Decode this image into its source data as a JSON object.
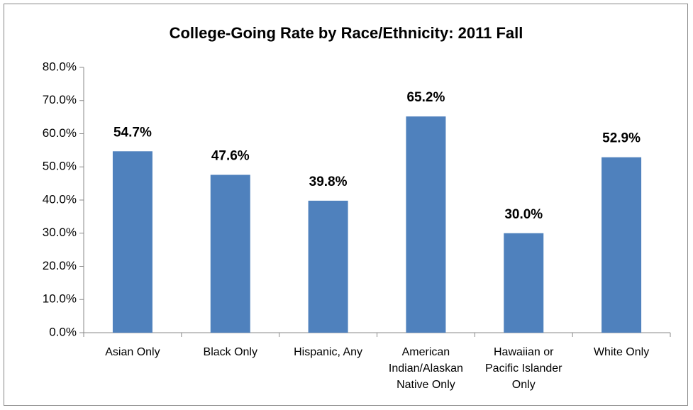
{
  "chart_data": {
    "type": "bar",
    "title": "College-Going Rate by Race/Ethnicity: 2011 Fall",
    "categories": [
      "Asian Only",
      "Black Only",
      "Hispanic, Any",
      "American Indian/Alaskan Native Only",
      "Hawaiian or Pacific Islander Only",
      "White Only"
    ],
    "values": [
      54.7,
      47.6,
      39.8,
      65.2,
      30.0,
      52.9
    ],
    "value_labels": [
      "54.7%",
      "47.6%",
      "39.8%",
      "65.2%",
      "30.0%",
      "52.9%"
    ],
    "color": "#4f81bd",
    "ylim": [
      0,
      80
    ],
    "yticks": [
      {
        "value": 0,
        "label": "0.0%"
      },
      {
        "value": 10,
        "label": "10.0%"
      },
      {
        "value": 20,
        "label": "20.0%"
      },
      {
        "value": 30,
        "label": "30.0%"
      },
      {
        "value": 40,
        "label": "40.0%"
      },
      {
        "value": 50,
        "label": "50.0%"
      },
      {
        "value": 60,
        "label": "60.0%"
      },
      {
        "value": 70,
        "label": "70.0%"
      },
      {
        "value": 80,
        "label": "80.0%"
      }
    ],
    "grid": false
  }
}
